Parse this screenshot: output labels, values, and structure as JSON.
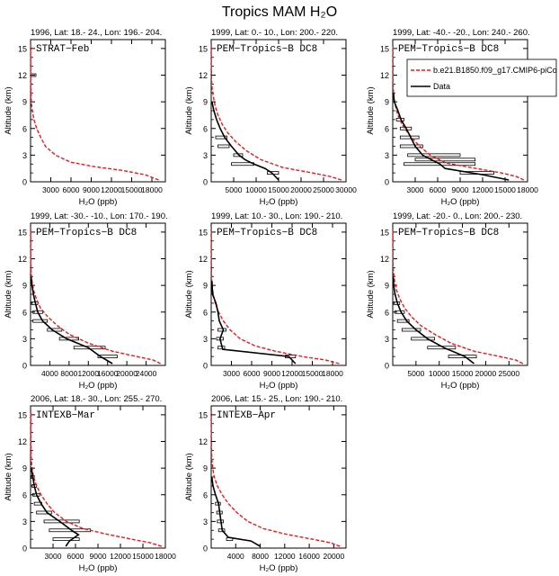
{
  "title": "Tropics MAM H₂O",
  "legend": {
    "model_label": "b.e21.B1850.f09_g17.CMIP6-piCo",
    "data_label": "Data",
    "model_color": "#e8191c",
    "data_color": "#000000"
  },
  "chart_data": [
    {
      "type": "line",
      "header": "1996, Lat: 18.- 24., Lon: 196.- 204.",
      "campaign": "STRAT−Feb",
      "xlabel": "H₂O (ppb)",
      "ylabel": "Altitude (km)",
      "xlim": [
        0,
        20000
      ],
      "ylim": [
        0,
        16
      ],
      "xticks": [
        3000,
        6000,
        9000,
        12000,
        15000,
        18000
      ],
      "yticks": [
        0,
        3,
        6,
        9,
        12,
        15
      ],
      "model": {
        "x": [
          19000,
          17000,
          13500,
          9500,
          6000,
          3700,
          2200,
          1500,
          900,
          500,
          250,
          100,
          50,
          30,
          20,
          15
        ],
        "y": [
          0.2,
          0.8,
          1.3,
          1.7,
          2.2,
          3.0,
          4.0,
          5.0,
          6.0,
          7.0,
          8.0,
          9.0,
          10.0,
          11.0,
          13.0,
          15.5
        ]
      },
      "data": {
        "x": [],
        "y": []
      },
      "bars": [
        {
          "y": 12.0,
          "lo": 0,
          "hi": 800
        }
      ],
      "legend": false
    },
    {
      "type": "line",
      "header": "1999, Lat: 0.- 10., Lon: 200.- 220.",
      "campaign": "PEM−Tropics−B DC8",
      "xlabel": "H₂O (ppb)",
      "ylabel": "Altitude (km)",
      "xlim": [
        0,
        30000
      ],
      "ylim": [
        0,
        16
      ],
      "xticks": [
        5000,
        10000,
        15000,
        20000,
        25000,
        30000
      ],
      "yticks": [
        0,
        3,
        6,
        9,
        12,
        15
      ],
      "model": {
        "x": [
          29000,
          26500,
          22500,
          16000,
          11000,
          7800,
          5500,
          3700,
          2400,
          1500,
          900,
          500,
          200,
          80,
          30,
          20
        ],
        "y": [
          0.2,
          0.6,
          1.0,
          1.6,
          2.5,
          3.5,
          4.5,
          5.5,
          6.5,
          7.5,
          8.5,
          9.5,
          10.5,
          11.5,
          13.0,
          15.5
        ]
      },
      "data": {
        "x": [
          15000,
          13500,
          12000,
          9500,
          7500,
          6200,
          4500,
          3000,
          2000,
          1200,
          600,
          150
        ],
        "y": [
          0.2,
          1.0,
          1.5,
          2.0,
          2.5,
          3.0,
          4.0,
          5.0,
          6.0,
          7.0,
          8.0,
          9.0
        ]
      },
      "bars": [
        {
          "y": 1.0,
          "lo": 12500,
          "hi": 15000
        },
        {
          "y": 2.0,
          "lo": 4500,
          "hi": 9500
        },
        {
          "y": 3.0,
          "lo": 5000,
          "hi": 7000
        },
        {
          "y": 4.0,
          "lo": 1500,
          "hi": 4000
        },
        {
          "y": 5.0,
          "lo": 1000,
          "hi": 3500
        }
      ],
      "legend": false
    },
    {
      "type": "line",
      "header": "1999, Lat: -40.- -20., Lon: 240.- 260.",
      "campaign": "PEM−Tropics−B DC8",
      "xlabel": "H₂O (ppb)",
      "ylabel": "Altitude (km)",
      "xlim": [
        0,
        18000
      ],
      "ylim": [
        0,
        16
      ],
      "xticks": [
        3000,
        6000,
        9000,
        12000,
        15000,
        18000
      ],
      "yticks": [
        0,
        3,
        6,
        9,
        12,
        15
      ],
      "model": {
        "x": [
          17500,
          16500,
          14500,
          10500,
          7200,
          5000,
          3600,
          2500,
          1600,
          900,
          500,
          250,
          100,
          40,
          20
        ],
        "y": [
          0.2,
          0.6,
          1.0,
          1.6,
          2.1,
          3.0,
          4.0,
          5.0,
          6.0,
          7.0,
          8.0,
          9.0,
          10.0,
          11.5,
          15.5
        ]
      },
      "data": {
        "x": [
          15500,
          12000,
          7000,
          6300,
          4000,
          3000,
          2400,
          1800,
          1100,
          700,
          200,
          100
        ],
        "y": [
          0.2,
          0.8,
          1.5,
          2.0,
          3.0,
          4.0,
          5.0,
          6.0,
          7.0,
          8.0,
          9.0,
          10.0
        ]
      },
      "bars": [
        {
          "y": 1.0,
          "lo": 9000,
          "hi": 13500
        },
        {
          "y": 2.0,
          "lo": 1500,
          "hi": 11000
        },
        {
          "y": 2.5,
          "lo": 3000,
          "hi": 11000
        },
        {
          "y": 3.0,
          "lo": 2000,
          "hi": 9000
        },
        {
          "y": 4.0,
          "lo": 1000,
          "hi": 4000
        },
        {
          "y": 5.0,
          "lo": 1000,
          "hi": 3500
        },
        {
          "y": 6.0,
          "lo": 1000,
          "hi": 2500
        },
        {
          "y": 7.0,
          "lo": 500,
          "hi": 1500
        }
      ],
      "legend": true
    },
    {
      "type": "line",
      "header": "1999, Lat: -30.- -10., Lon: 170.- 190.",
      "campaign": "PEM−Tropics−B DC8",
      "xlabel": "H₂O (ppb)",
      "ylabel": "Altitude (km)",
      "xlim": [
        0,
        28000
      ],
      "ylim": [
        0,
        16
      ],
      "xticks": [
        4000,
        8000,
        12000,
        16000,
        20000,
        24000
      ],
      "yticks": [
        0,
        3,
        6,
        9,
        12,
        15
      ],
      "model": {
        "x": [
          27000,
          25500,
          22000,
          17000,
          12000,
          8000,
          5500,
          3500,
          2000,
          1200,
          600,
          300,
          100,
          40,
          20
        ],
        "y": [
          0.2,
          0.6,
          1.0,
          1.6,
          2.5,
          3.5,
          4.5,
          5.5,
          6.5,
          7.5,
          8.5,
          9.5,
          10.5,
          11.5,
          15.5
        ]
      },
      "data": {
        "x": [
          17000,
          14500,
          12000,
          7500,
          4500,
          2500,
          1500,
          1000,
          600,
          300,
          100
        ],
        "y": [
          0.2,
          1.0,
          2.0,
          3.0,
          4.0,
          5.0,
          6.0,
          7.0,
          8.0,
          9.0,
          10.0
        ]
      },
      "bars": [
        {
          "y": 1.0,
          "lo": 14000,
          "hi": 18000
        },
        {
          "y": 2.0,
          "lo": 9000,
          "hi": 15500
        },
        {
          "y": 3.0,
          "lo": 6000,
          "hi": 10000
        },
        {
          "y": 4.0,
          "lo": 3500,
          "hi": 6500
        },
        {
          "y": 5.0,
          "lo": 500,
          "hi": 3500
        },
        {
          "y": 6.0,
          "lo": 500,
          "hi": 2500
        },
        {
          "y": 7.0,
          "lo": 200,
          "hi": 1500
        }
      ],
      "legend": false
    },
    {
      "type": "line",
      "header": "1999, Lat: 10.- 30., Lon: 190.- 210.",
      "campaign": "PEM−Tropics−B DC8",
      "xlabel": "H₂O (ppb)",
      "ylabel": "Altitude (km)",
      "xlim": [
        0,
        20000
      ],
      "ylim": [
        0,
        16
      ],
      "xticks": [
        3000,
        6000,
        9000,
        12000,
        15000,
        18000
      ],
      "yticks": [
        0,
        3,
        6,
        9,
        12,
        15
      ],
      "model": {
        "x": [
          19000,
          17000,
          13500,
          9500,
          6500,
          4300,
          2800,
          1800,
          1100,
          600,
          300,
          150,
          60,
          30,
          20
        ],
        "y": [
          0.2,
          0.6,
          1.0,
          1.6,
          2.2,
          3.0,
          4.0,
          5.0,
          6.0,
          7.0,
          8.0,
          9.0,
          10.0,
          11.5,
          15.5
        ]
      },
      "data": {
        "x": [
          12500,
          11500,
          1700,
          1300,
          1800,
          1200,
          1000,
          700,
          200,
          100
        ],
        "y": [
          0.2,
          1.0,
          1.8,
          3.0,
          4.0,
          5.0,
          6.0,
          7.0,
          8.0,
          9.5
        ]
      },
      "bars": [
        {
          "y": 1.0,
          "lo": 11000,
          "hi": 12500
        },
        {
          "y": 2.0,
          "lo": 1000,
          "hi": 2000
        },
        {
          "y": 3.0,
          "lo": 800,
          "hi": 1800
        },
        {
          "y": 4.0,
          "lo": 1000,
          "hi": 2200
        }
      ],
      "legend": false
    },
    {
      "type": "line",
      "header": "1999, Lat: -20.- 0., Lon: 200.- 230.",
      "campaign": "PEM−Tropics−B DC8",
      "xlabel": "H₂O (ppb)",
      "ylabel": "Altitude (km)",
      "xlim": [
        0,
        29000
      ],
      "ylim": [
        0,
        16
      ],
      "xticks": [
        5000,
        10000,
        15000,
        20000,
        25000
      ],
      "yticks": [
        0,
        3,
        6,
        9,
        12,
        15
      ],
      "model": {
        "x": [
          28000,
          26500,
          23000,
          17500,
          12500,
          9000,
          6000,
          4000,
          2500,
          1500,
          800,
          400,
          150,
          50,
          20
        ],
        "y": [
          0.2,
          0.6,
          1.0,
          1.6,
          2.5,
          3.5,
          4.5,
          5.5,
          6.5,
          7.5,
          8.5,
          9.5,
          10.5,
          11.5,
          15.5
        ]
      },
      "data": {
        "x": [
          17500,
          15500,
          11000,
          7500,
          5000,
          3000,
          1800,
          1000,
          500,
          200,
          100
        ],
        "y": [
          0.2,
          1.0,
          2.0,
          3.0,
          4.0,
          5.0,
          6.0,
          7.0,
          8.0,
          9.0,
          10.0
        ]
      },
      "bars": [
        {
          "y": 1.0,
          "lo": 12000,
          "hi": 18000
        },
        {
          "y": 2.0,
          "lo": 7500,
          "hi": 13500
        },
        {
          "y": 3.0,
          "lo": 4000,
          "hi": 9000
        },
        {
          "y": 4.0,
          "lo": 2000,
          "hi": 6000
        },
        {
          "y": 5.0,
          "lo": 1000,
          "hi": 3500
        },
        {
          "y": 6.0,
          "lo": 500,
          "hi": 2500
        },
        {
          "y": 7.0,
          "lo": 200,
          "hi": 1500
        }
      ],
      "legend": false
    },
    {
      "type": "line",
      "header": "2006, Lat: 18.- 30., Lon: 255.- 270.",
      "campaign": "INTEXB−Mar",
      "xlabel": "H₂O (ppb)",
      "ylabel": "Altitude (km)",
      "xlim": [
        0,
        18000
      ],
      "ylim": [
        0,
        16
      ],
      "xticks": [
        3000,
        6000,
        9000,
        12000,
        15000,
        18000
      ],
      "yticks": [
        0,
        3,
        6,
        9,
        12,
        15
      ],
      "model": {
        "x": [
          17500,
          16000,
          13500,
          10000,
          7000,
          4800,
          3200,
          2200,
          1400,
          800,
          400,
          200,
          80,
          30,
          20
        ],
        "y": [
          0.2,
          0.6,
          1.0,
          1.6,
          2.2,
          3.0,
          4.0,
          5.0,
          6.0,
          7.0,
          8.0,
          9.0,
          10.0,
          11.5,
          15.5
        ]
      },
      "data": {
        "x": [
          4700,
          5200,
          6400,
          5500,
          3900,
          2200,
          1400,
          800,
          500,
          300,
          100
        ],
        "y": [
          0.2,
          0.8,
          1.5,
          2.0,
          3.0,
          4.0,
          5.0,
          6.0,
          7.0,
          8.0,
          9.0
        ]
      },
      "bars": [
        {
          "y": 1.0,
          "lo": 3000,
          "hi": 6500
        },
        {
          "y": 2.0,
          "lo": 2500,
          "hi": 8000
        },
        {
          "y": 3.0,
          "lo": 1800,
          "hi": 6500
        },
        {
          "y": 4.0,
          "lo": 800,
          "hi": 2800
        },
        {
          "y": 5.0,
          "lo": 500,
          "hi": 1500
        },
        {
          "y": 6.0,
          "lo": 300,
          "hi": 1200
        },
        {
          "y": 7.0,
          "lo": 200,
          "hi": 800
        },
        {
          "y": 8.0,
          "lo": 100,
          "hi": 500
        }
      ],
      "legend": false
    },
    {
      "type": "line",
      "header": "2006, Lat: 15.- 25., Lon: 190.- 210.",
      "campaign": "INTEXB−Apr",
      "xlabel": "H₂O (ppb)",
      "ylabel": "Altitude (km)",
      "xlim": [
        0,
        22000
      ],
      "ylim": [
        0,
        16
      ],
      "xticks": [
        4000,
        8000,
        12000,
        16000,
        20000
      ],
      "yticks": [
        0,
        3,
        6,
        9,
        12,
        15
      ],
      "model": {
        "x": [
          21000,
          19500,
          16500,
          12000,
          8500,
          6000,
          4200,
          2800,
          1800,
          1000,
          500,
          250,
          100,
          40,
          20
        ],
        "y": [
          0.2,
          0.6,
          1.0,
          1.6,
          2.2,
          3.0,
          4.0,
          5.0,
          6.0,
          7.0,
          8.0,
          9.0,
          10.0,
          11.5,
          15.5
        ]
      },
      "data": {
        "x": [
          8000,
          6500,
          2800,
          1800,
          1600,
          1400,
          1200,
          700,
          300,
          100
        ],
        "y": [
          0.2,
          0.8,
          1.2,
          2.0,
          3.0,
          4.0,
          5.0,
          6.0,
          7.0,
          8.0
        ]
      },
      "bars": [
        {
          "y": 1.0,
          "lo": 2500,
          "hi": 3500
        },
        {
          "y": 2.0,
          "lo": 1200,
          "hi": 2200
        },
        {
          "y": 3.0,
          "lo": 1000,
          "hi": 2000
        },
        {
          "y": 4.0,
          "lo": 900,
          "hi": 1800
        },
        {
          "y": 5.0,
          "lo": 700,
          "hi": 1500
        }
      ],
      "legend": false
    }
  ]
}
